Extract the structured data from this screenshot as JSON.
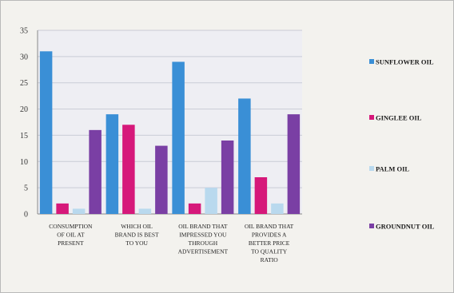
{
  "chart_data": {
    "type": "bar",
    "title": "",
    "xlabel": "",
    "ylabel": "",
    "ylim": [
      0,
      35
    ],
    "yticks": [
      "0",
      "5",
      "10",
      "15",
      "20",
      "25",
      "30",
      "35"
    ],
    "grid": true,
    "legend_position": "right",
    "categories": [
      [
        "CONSUMPTION",
        "OF OIL AT",
        "PRESENT"
      ],
      [
        "WHICH OIL",
        "BRAND IS BEST",
        "TO YOU"
      ],
      [
        "OIL BRAND THAT",
        "IMPRESSED YOU",
        "THROUGH",
        "ADVERTISEMENT"
      ],
      [
        "OIL BRAND THAT",
        "PROVIDES A",
        "BETTER PRICE",
        "TO QUALITY",
        "RATIO"
      ]
    ],
    "series": [
      {
        "name": "SUNFLOWER OIL",
        "color": "#3a8fd6",
        "values": [
          31,
          19,
          29,
          22
        ]
      },
      {
        "name": "GINGLEE OIL",
        "color": "#d6187a",
        "values": [
          2,
          17,
          2,
          7
        ]
      },
      {
        "name": "PALM OIL",
        "color": "#b9d9ee",
        "values": [
          1,
          1,
          5,
          2
        ]
      },
      {
        "name": "GROUNDNUT OIL",
        "color": "#7a3fa4",
        "values": [
          16,
          13,
          14,
          19
        ]
      }
    ]
  }
}
